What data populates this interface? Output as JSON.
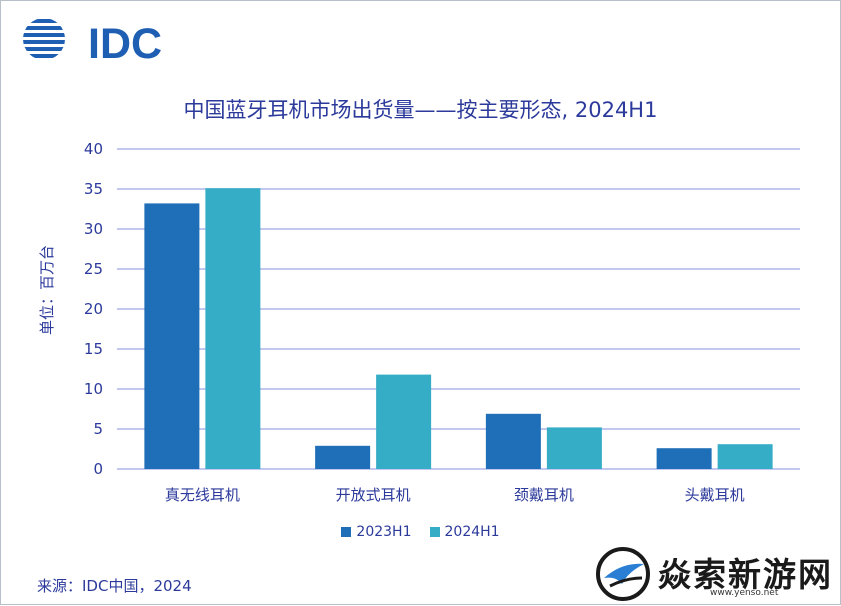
{
  "logo": {
    "text": "IDC"
  },
  "chart_data": {
    "type": "bar",
    "title": "中国蓝牙耳机市场出货量——按主要形态, 2024H1",
    "ylabel": "单位：百万台",
    "xlabel": "",
    "ylim": [
      0,
      40
    ],
    "yticks": [
      "0",
      "5",
      "10",
      "15",
      "20",
      "25",
      "30",
      "35",
      "40"
    ],
    "grid": true,
    "legend_position": "bottom",
    "categories": [
      "真无线耳机",
      "开放式耳机",
      "颈戴耳机",
      "头戴耳机"
    ],
    "series": [
      {
        "name": "2023H1",
        "color": "#1f6fb8",
        "values": [
          33.2,
          2.9,
          6.9,
          2.6
        ]
      },
      {
        "name": "2024H1",
        "color": "#36adc6",
        "values": [
          35.1,
          11.8,
          5.2,
          3.1
        ]
      }
    ]
  },
  "source": "来源：IDC中国，2024",
  "watermark": {
    "text": "焱索新游网",
    "url": "www.yenso.net"
  },
  "colors": {
    "text": "#2b3a9b",
    "grid": "#9ea7e6",
    "logo": "#1f5fb3"
  }
}
